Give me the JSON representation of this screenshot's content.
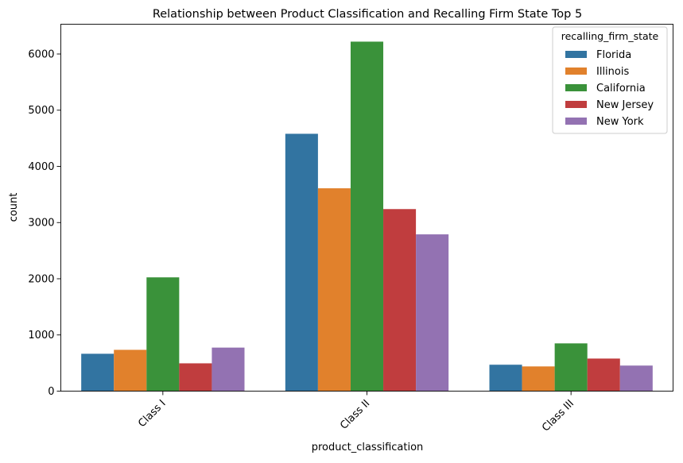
{
  "chart_data": {
    "type": "bar",
    "title": "Relationship between Product Classification and Recalling Firm State Top 5",
    "xlabel": "product_classification",
    "ylabel": "count",
    "categories": [
      "Class I",
      "Class II",
      "Class III"
    ],
    "ylim": [
      0,
      6530
    ],
    "yticks": [
      0,
      1000,
      2000,
      3000,
      4000,
      5000,
      6000
    ],
    "ytick_labels": [
      "0",
      "1000",
      "2000",
      "3000",
      "4000",
      "5000",
      "6000"
    ],
    "grid": false,
    "legend": {
      "title": "recalling_firm_state",
      "placement": "top-right"
    },
    "series": [
      {
        "name": "Florida",
        "color": "#3274a1",
        "values": [
          665,
          4580,
          470
        ]
      },
      {
        "name": "Illinois",
        "color": "#e1812c",
        "values": [
          735,
          3610,
          440
        ]
      },
      {
        "name": "California",
        "color": "#3a923a",
        "values": [
          2025,
          6220,
          850
        ]
      },
      {
        "name": "New Jersey",
        "color": "#c03d3e",
        "values": [
          495,
          3240,
          580
        ]
      },
      {
        "name": "New York",
        "color": "#9372b2",
        "values": [
          775,
          2790,
          455
        ]
      }
    ]
  }
}
